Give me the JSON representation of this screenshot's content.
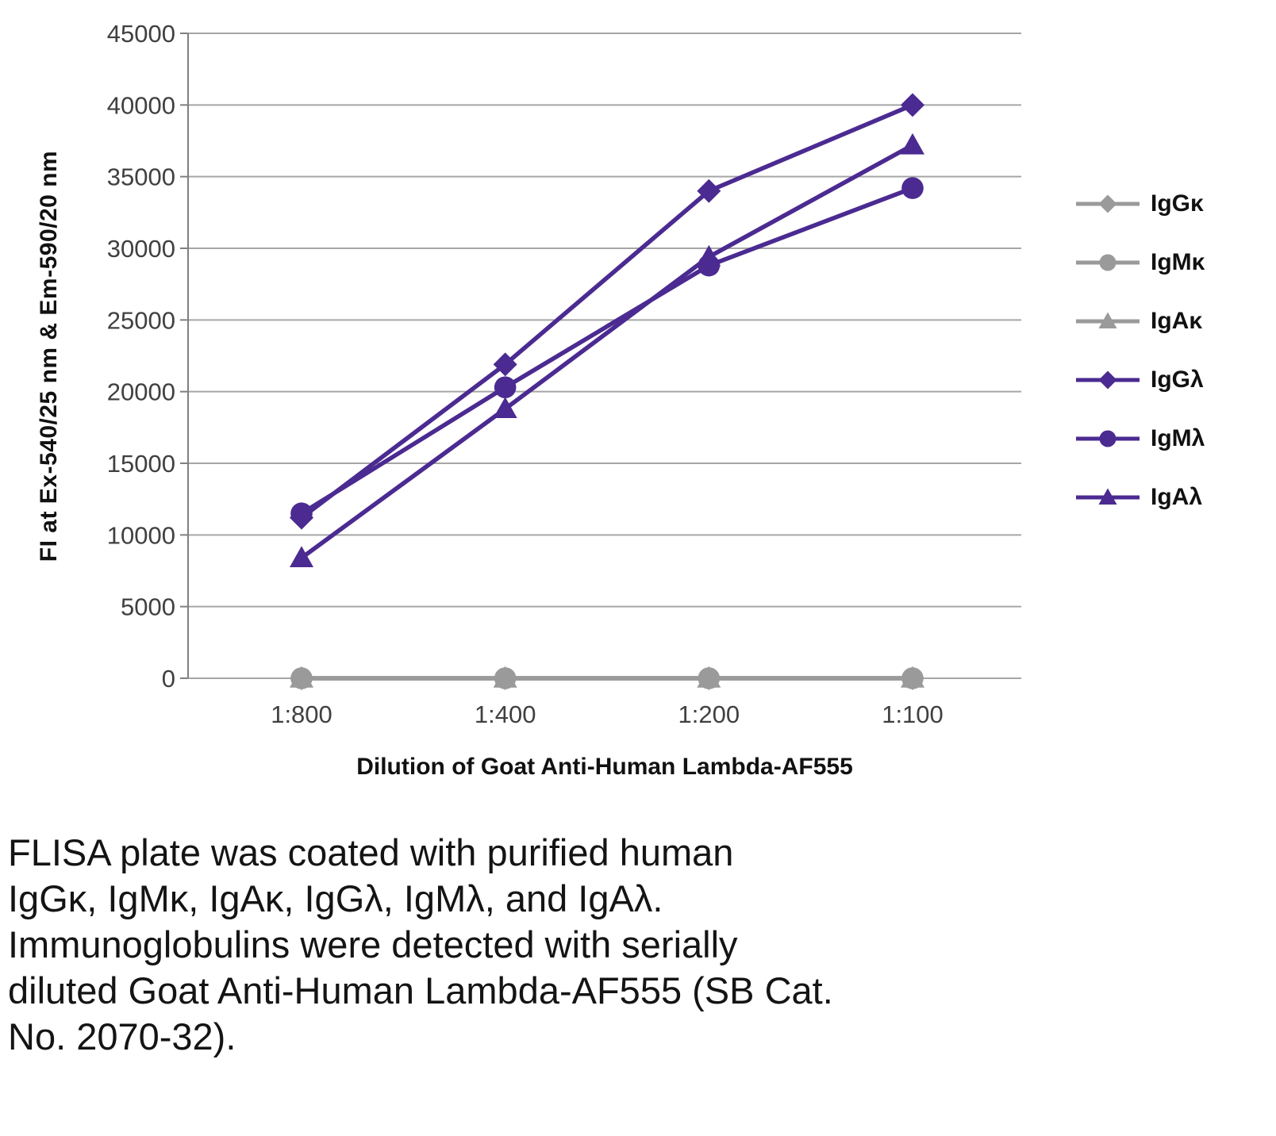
{
  "chart_data": {
    "type": "line",
    "title": "",
    "xlabel": "Dilution of Goat Anti-Human Lambda-AF555",
    "ylabel": "FI at Ex-540/25 nm & Em-590/20 nm",
    "categories": [
      "1:800",
      "1:400",
      "1:200",
      "1:100"
    ],
    "ylim": [
      0,
      45000
    ],
    "ytick_step": 5000,
    "grid": true,
    "legend_position": "right",
    "colors": {
      "gray": "#9a9a9a",
      "purple": "#4b2a91"
    },
    "series": [
      {
        "name": "IgGκ",
        "marker": "diamond",
        "color": "#9a9a9a",
        "values": [
          0,
          0,
          0,
          0
        ]
      },
      {
        "name": "IgMκ",
        "marker": "circle",
        "color": "#9a9a9a",
        "values": [
          0,
          0,
          0,
          0
        ]
      },
      {
        "name": "IgAκ",
        "marker": "triangle",
        "color": "#9a9a9a",
        "values": [
          0,
          0,
          0,
          0
        ]
      },
      {
        "name": "IgGλ",
        "marker": "diamond",
        "color": "#4b2a91",
        "values": [
          11200,
          21900,
          34000,
          40000
        ]
      },
      {
        "name": "IgMλ",
        "marker": "circle",
        "color": "#4b2a91",
        "values": [
          11500,
          20300,
          28800,
          34200
        ]
      },
      {
        "name": "IgAλ",
        "marker": "triangle",
        "color": "#4b2a91",
        "values": [
          8400,
          18800,
          29400,
          37200
        ]
      }
    ]
  },
  "caption": {
    "lines": [
      "FLISA plate was coated with purified human",
      "IgGκ, IgMκ, IgAκ, IgGλ, IgMλ, and IgAλ.",
      "Immunoglobulins were detected with serially",
      "diluted Goat Anti-Human Lambda-AF555 (SB Cat.",
      "No. 2070-32)."
    ]
  }
}
